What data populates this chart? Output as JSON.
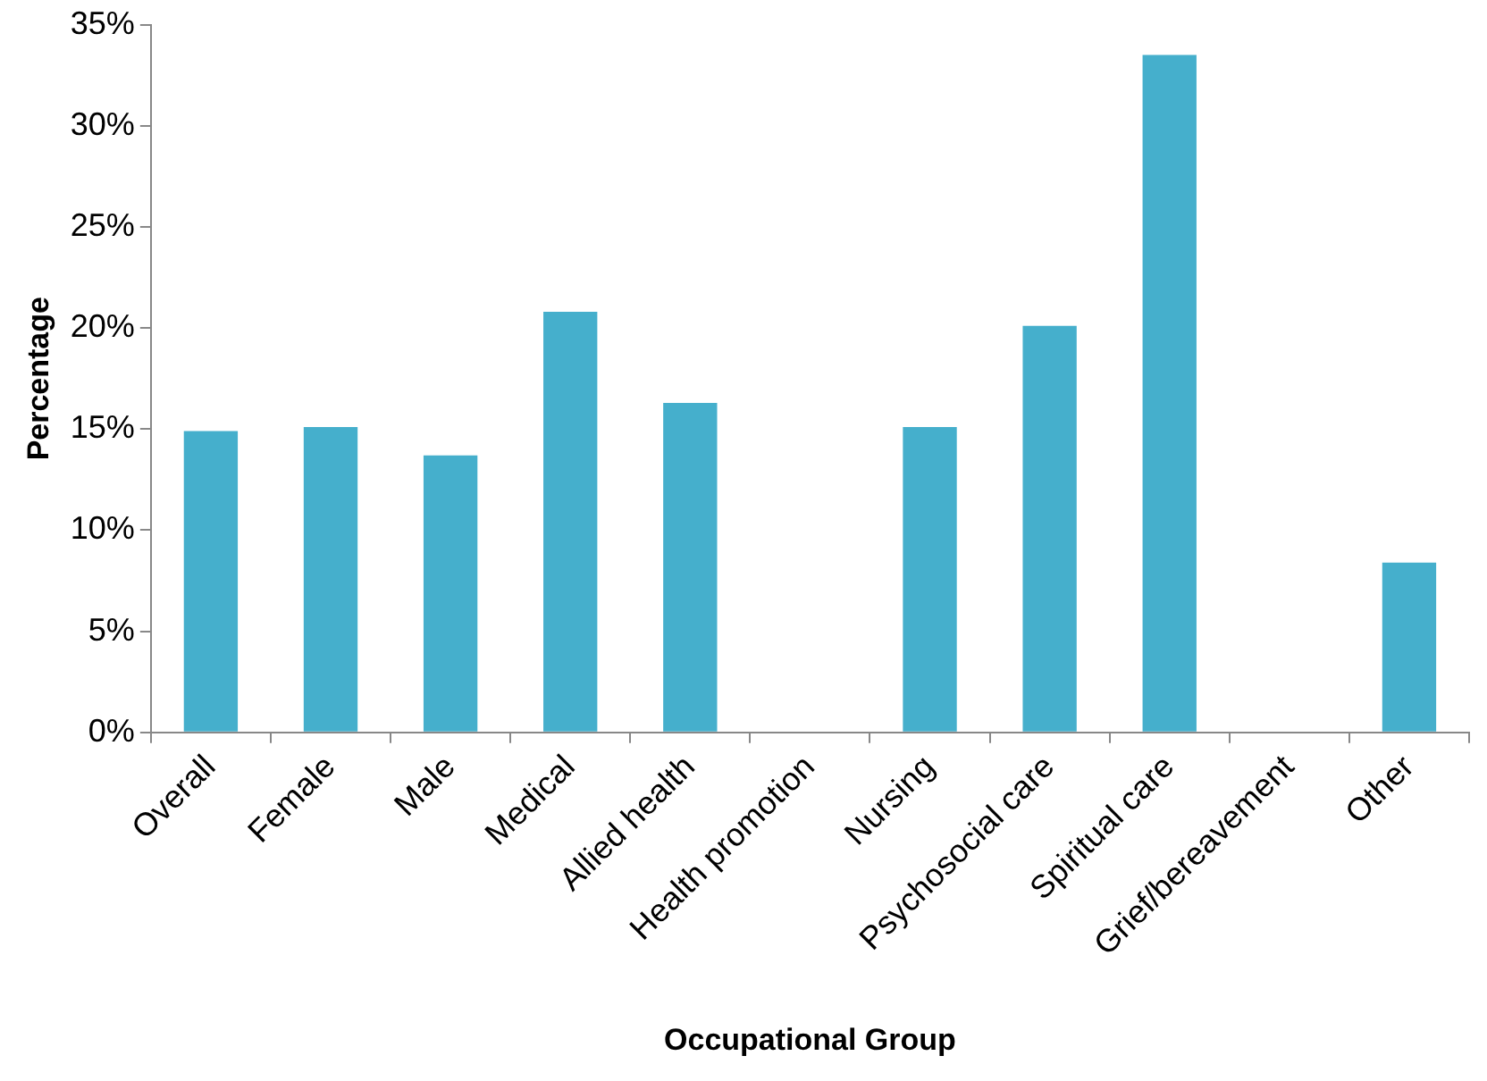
{
  "chart_data": {
    "type": "bar",
    "xlabel": "Occupational Group",
    "ylabel": "Percentage",
    "categories": [
      "Overall",
      "Female",
      "Male",
      "Medical",
      "Allied health",
      "Health promotion",
      "Nursing",
      "Psychosocial care",
      "Spiritual care",
      "Grief/bereavement",
      "Other"
    ],
    "values": [
      14.9,
      15.1,
      13.7,
      20.8,
      16.3,
      0,
      15.1,
      20.1,
      33.5,
      0,
      8.4
    ],
    "color": "#45afcc",
    "ylim": [
      0,
      35
    ],
    "yticks": [
      {
        "value": 0,
        "label": "0%"
      },
      {
        "value": 5,
        "label": "5%"
      },
      {
        "value": 10,
        "label": "10%"
      },
      {
        "value": 15,
        "label": "15%"
      },
      {
        "value": 20,
        "label": "20%"
      },
      {
        "value": 25,
        "label": "25%"
      },
      {
        "value": 30,
        "label": "30%"
      },
      {
        "value": 35,
        "label": "35%"
      }
    ],
    "grid": false,
    "legend": false
  }
}
